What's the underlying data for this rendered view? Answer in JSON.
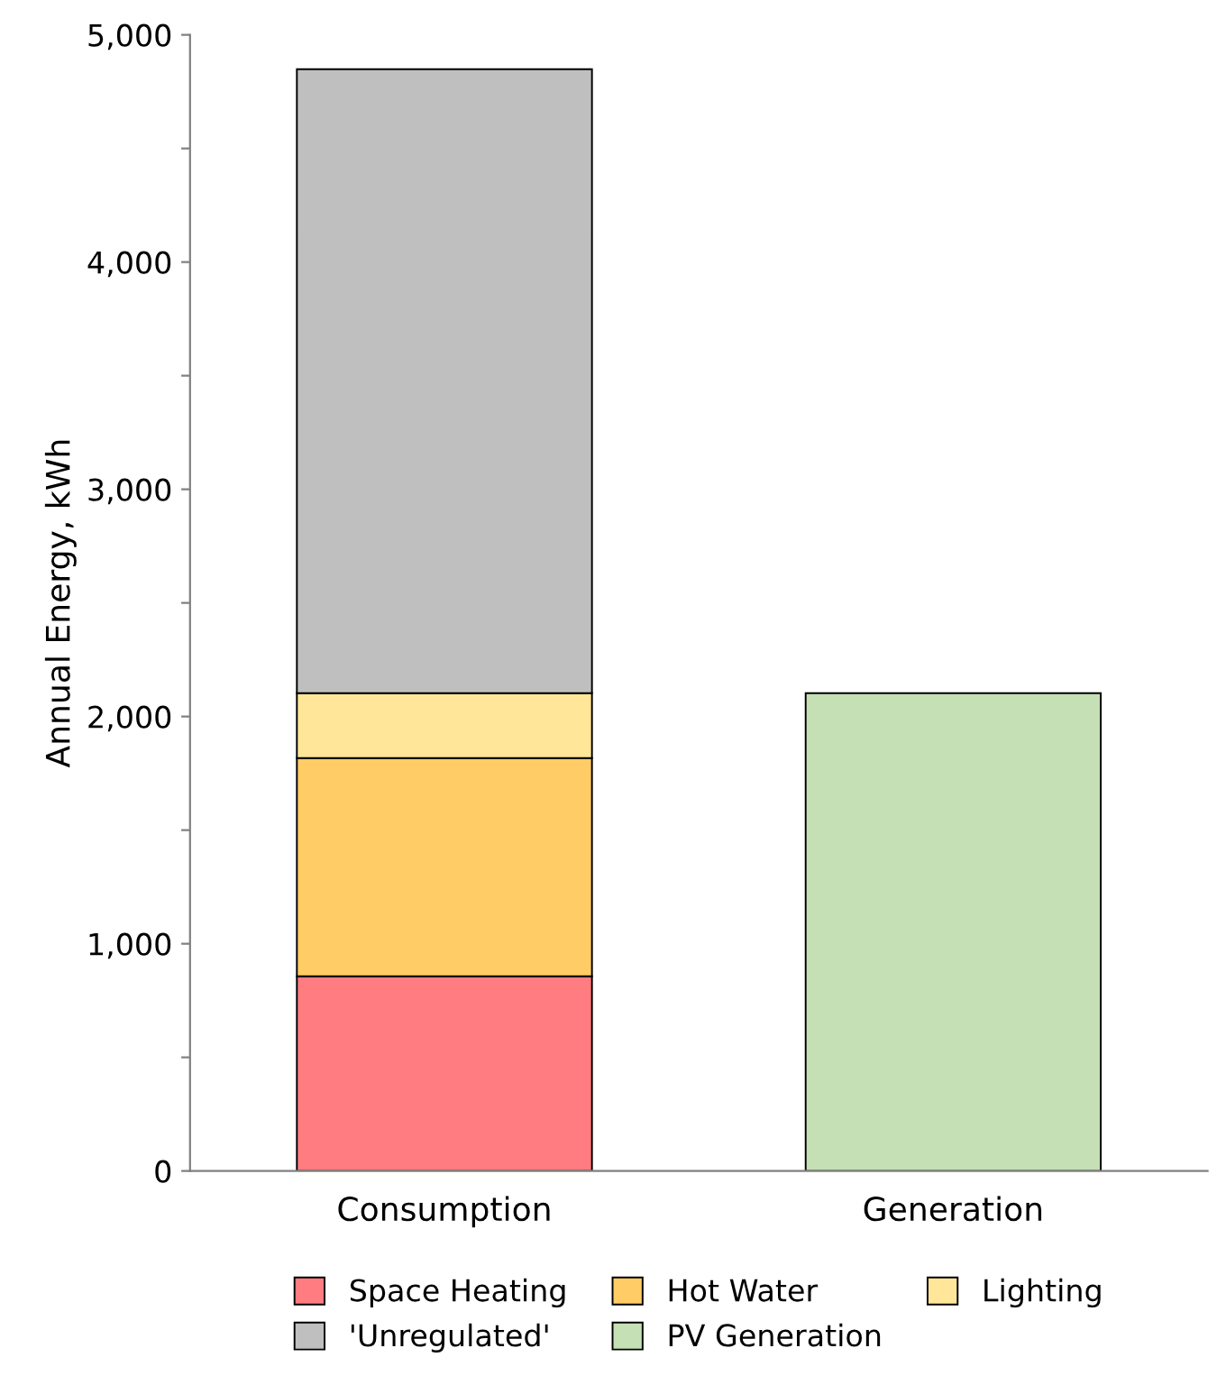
{
  "chart_data": {
    "type": "bar",
    "stacked": true,
    "ylabel": "Annual Energy, kWh",
    "categories": [
      "Consumption",
      "Generation"
    ],
    "series": [
      {
        "name": "Space Heating",
        "color": "#ff7c80",
        "values": [
          857,
          null
        ]
      },
      {
        "name": "Hot Water",
        "color": "#ffcc66",
        "values": [
          960,
          null
        ]
      },
      {
        "name": "Lighting",
        "color": "#ffe699",
        "values": [
          286,
          null
        ]
      },
      {
        "name": "'Unregulated'",
        "color": "#bfbfbf",
        "values": [
          2746,
          null
        ]
      },
      {
        "name": "PV Generation",
        "color": "#c5e0b4",
        "values": [
          null,
          2103
        ]
      }
    ],
    "ylim": [
      0,
      5000
    ],
    "yticks": [
      {
        "value": 0,
        "label": "0"
      },
      {
        "value": 500,
        "label": null
      },
      {
        "value": 1000,
        "label": "1,000"
      },
      {
        "value": 1500,
        "label": null
      },
      {
        "value": 2000,
        "label": "2,000"
      },
      {
        "value": 2500,
        "label": null
      },
      {
        "value": 3000,
        "label": "3,000"
      },
      {
        "value": 3500,
        "label": null
      },
      {
        "value": 4000,
        "label": "4,000"
      },
      {
        "value": 4500,
        "label": null
      },
      {
        "value": 5000,
        "label": "5,000"
      }
    ],
    "grid": false,
    "legend": "bottom"
  }
}
